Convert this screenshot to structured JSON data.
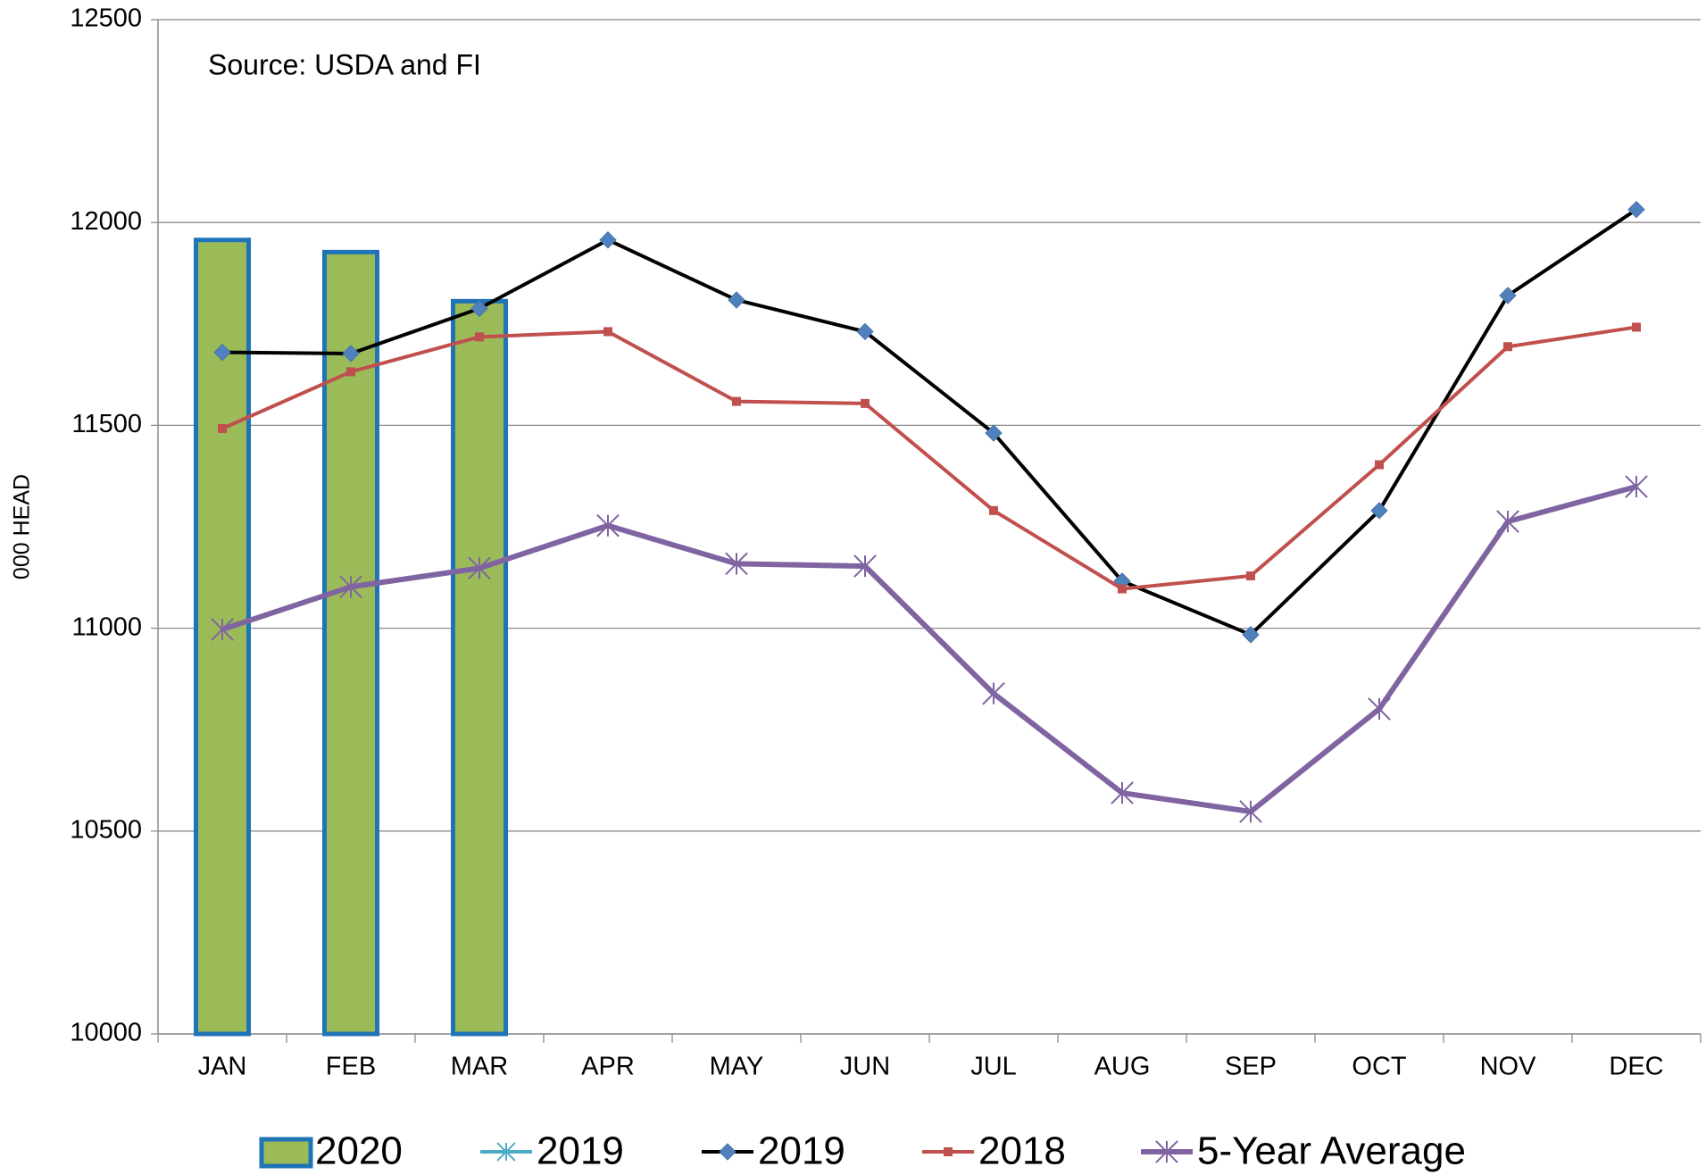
{
  "chart_data": {
    "type": "combo",
    "annotation": "Source: USDA and FI",
    "y_label": "000 HEAD",
    "categories": [
      "JAN",
      "FEB",
      "MAR",
      "APR",
      "MAY",
      "JUN",
      "JUL",
      "AUG",
      "SEP",
      "OCT",
      "NOV",
      "DEC"
    ],
    "ylim": [
      10000,
      12500
    ],
    "yticks": [
      10000,
      10500,
      11000,
      11500,
      12000,
      12500
    ],
    "grid": true,
    "legend": "bottom",
    "series": [
      {
        "name": "2020",
        "type": "bar",
        "color": "#9bbb59",
        "edge_color": "#1f73b7",
        "values": [
          11957,
          11927,
          11806,
          null,
          null,
          null,
          null,
          null,
          null,
          null,
          null,
          null
        ]
      },
      {
        "name": "2019",
        "type": "line",
        "color": "#4bacc6",
        "marker": "asterisk",
        "marker_color": "#4bacc6",
        "values": [
          null,
          null,
          null,
          null,
          null,
          null,
          null,
          null,
          null,
          null,
          null,
          null
        ]
      },
      {
        "name": "2019",
        "type": "line",
        "color": "#000000",
        "marker": "diamond",
        "marker_color": "#4f81bd",
        "values": [
          11680,
          11677,
          11788,
          11957,
          11809,
          11731,
          11481,
          11116,
          10984,
          11290,
          11820,
          12032
        ]
      },
      {
        "name": "2018",
        "type": "line",
        "color": "#c0504d",
        "marker": "square",
        "marker_color": "#c0504d",
        "values": [
          11492,
          11632,
          11718,
          11731,
          11559,
          11554,
          11290,
          11097,
          11129,
          11403,
          11694,
          11742
        ]
      },
      {
        "name": "5-Year Average",
        "type": "line",
        "color": "#8064a2",
        "marker": "star",
        "marker_color": "#8064a2",
        "values": [
          10997,
          11102,
          11148,
          11253,
          11159,
          11153,
          10839,
          10594,
          10548,
          10801,
          11263,
          11349
        ]
      }
    ]
  }
}
